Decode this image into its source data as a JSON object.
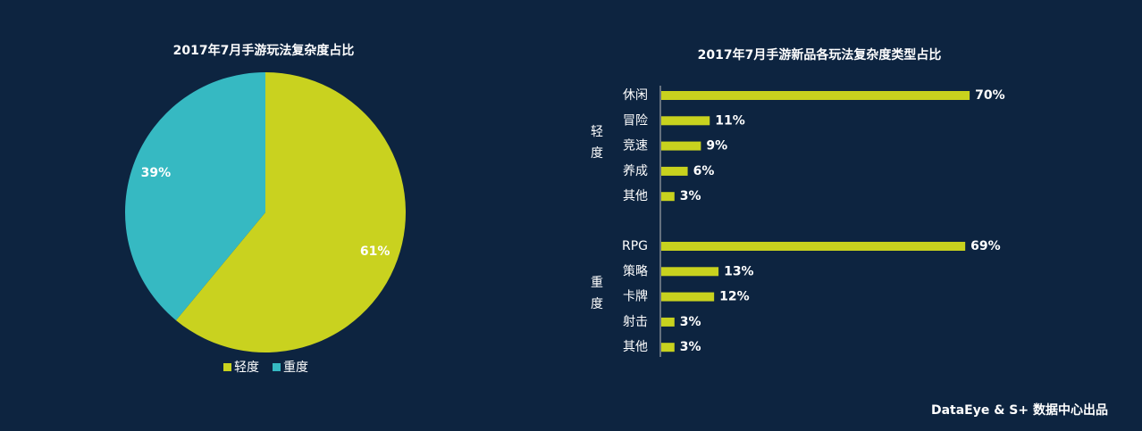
{
  "chart_data": [
    {
      "type": "pie",
      "title": "2017年7月手游玩法复杂度占比",
      "categories": [
        "轻度",
        "重度"
      ],
      "values": [
        61,
        39
      ],
      "value_labels": [
        "61%",
        "39%"
      ],
      "colors": [
        "#c9d21f",
        "#36b9c2"
      ],
      "legend": "bottom"
    },
    {
      "type": "bar",
      "orientation": "horizontal",
      "title": "2017年7月手游新品各玩法复杂度类型占比",
      "color": "#c8d21e",
      "groups": [
        {
          "name": "轻度",
          "categories": [
            "休闲",
            "冒险",
            "竞速",
            "养成",
            "其他"
          ],
          "values": [
            70,
            11,
            9,
            6,
            3
          ],
          "value_labels": [
            "70%",
            "11%",
            "9%",
            "6%",
            "3%"
          ]
        },
        {
          "name": "重度",
          "categories": [
            "RPG",
            "策略",
            "卡牌",
            "射击",
            "其他"
          ],
          "values": [
            69,
            13,
            12,
            3,
            3
          ],
          "value_labels": [
            "69%",
            "13%",
            "12%",
            "3%",
            "3%"
          ]
        }
      ]
    }
  ],
  "footer": "DataEye & S+ 数据中心出品"
}
